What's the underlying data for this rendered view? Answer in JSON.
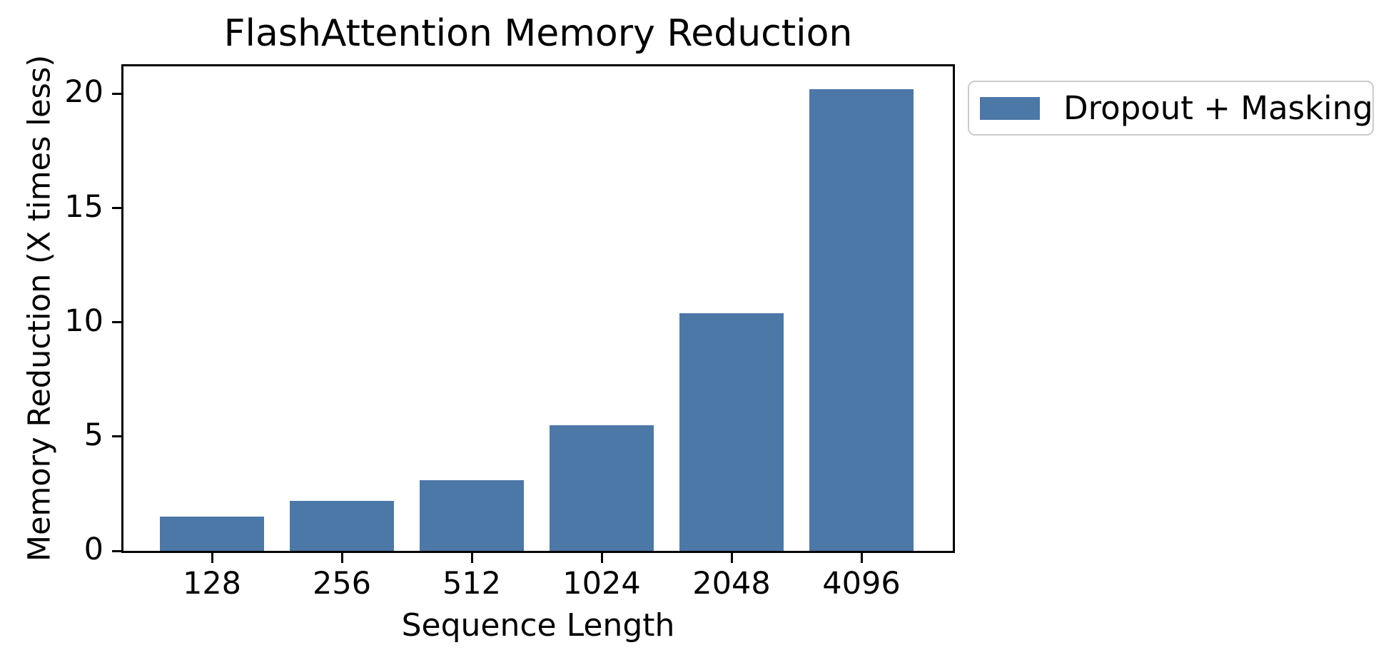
{
  "figure": {
    "title": "FlashAttention Memory Reduction",
    "background_color": "#ffffff",
    "axis_color": "#000000",
    "text_color": "#000000"
  },
  "chart_data": {
    "type": "bar",
    "title": "FlashAttention Memory Reduction",
    "xlabel": "Sequence Length",
    "ylabel": "Memory Reduction (X times less)",
    "categories": [
      "128",
      "256",
      "512",
      "1024",
      "2048",
      "4096"
    ],
    "series": [
      {
        "name": "Dropout + Masking",
        "color": "#4c78a8",
        "values": [
          1.5,
          2.2,
          3.1,
          5.5,
          10.4,
          20.2
        ]
      }
    ],
    "ylim": [
      0,
      21.2
    ],
    "yticks": [
      0,
      5,
      10,
      15,
      20
    ],
    "grid": false,
    "legend_position": "outside upper right"
  },
  "legend": {
    "label": "Dropout + Masking",
    "swatch_color": "#4c78a8",
    "border_color": "#cccccc"
  }
}
